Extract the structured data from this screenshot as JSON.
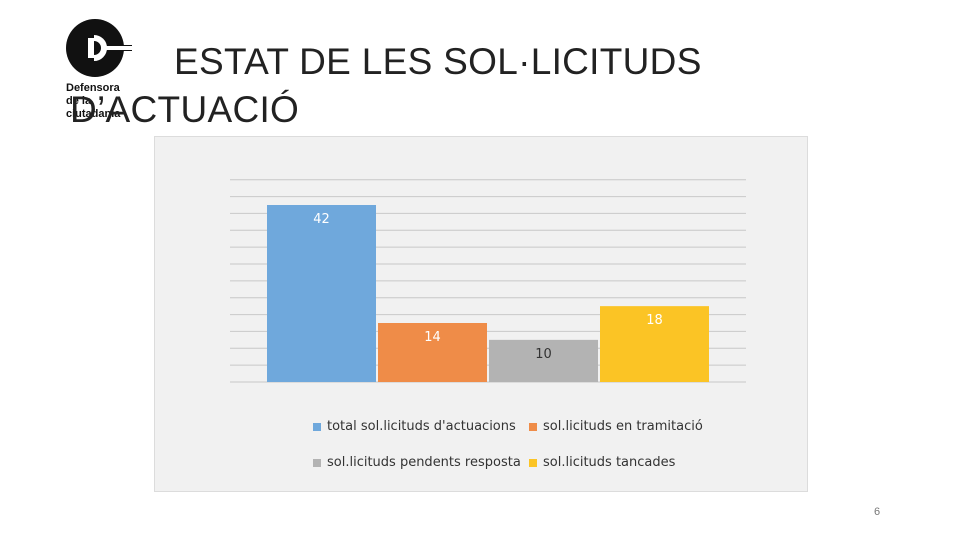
{
  "header": {
    "logo_text": "Defensora\nde la\nciutadania",
    "title_line1": "ESTAT DE LES SOL·LICITUDS",
    "title_line2": "D’ACTUACIÓ"
  },
  "chart_data": {
    "type": "bar",
    "title": "",
    "xlabel": "",
    "ylabel": "",
    "ylim": [
      0,
      48
    ],
    "grid": true,
    "legend_position": "bottom",
    "series": [
      {
        "name": "total sol.licituds d'actuacions",
        "value": 42,
        "color": "#6fa8dc"
      },
      {
        "name": "sol.licituds en tramitació",
        "value": 14,
        "color": "#ef8c48"
      },
      {
        "name": "sol.licituds pendents resposta",
        "value": 10,
        "color": "#b3b3b3"
      },
      {
        "name": "sol.licituds tancades",
        "value": 18,
        "color": "#fbc425"
      }
    ]
  },
  "footer": {
    "page_number": "6"
  }
}
